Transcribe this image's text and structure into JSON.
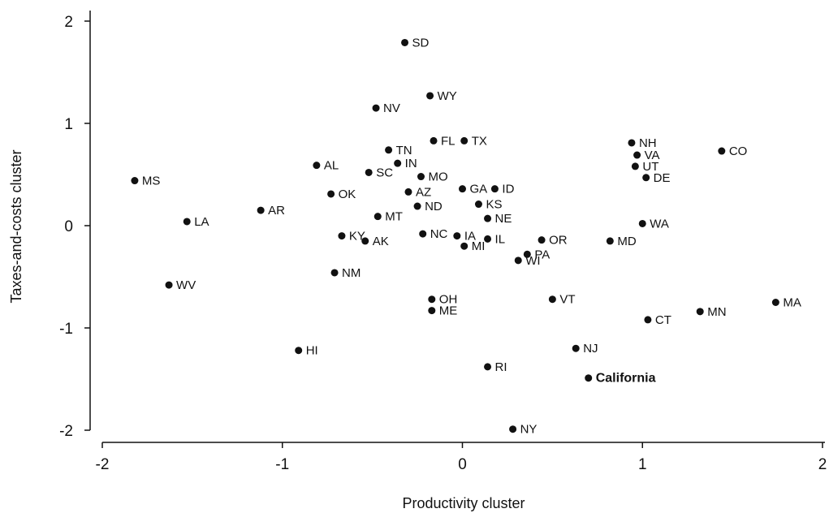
{
  "chart_data": {
    "type": "scatter",
    "xlabel": "Productivity cluster",
    "ylabel": "Taxes-and-costs cluster",
    "xlim": [
      -2,
      2
    ],
    "ylim": [
      -2,
      2
    ],
    "x_ticks": [
      -2,
      -1,
      0,
      1,
      2
    ],
    "y_ticks": [
      -2,
      -1,
      0,
      1,
      2
    ],
    "x_tick_labels": [
      "-2",
      "-1",
      "0",
      "1",
      "2"
    ],
    "y_tick_labels": [
      "-2",
      "-1",
      "0",
      "1",
      "2"
    ],
    "grid": false,
    "marker_color": "#111111",
    "points": [
      {
        "label": "SD",
        "x": -0.32,
        "y": 1.79
      },
      {
        "label": "WY",
        "x": -0.18,
        "y": 1.27
      },
      {
        "label": "NV",
        "x": -0.48,
        "y": 1.15
      },
      {
        "label": "FL",
        "x": -0.16,
        "y": 0.83
      },
      {
        "label": "TX",
        "x": 0.01,
        "y": 0.83
      },
      {
        "label": "NH",
        "x": 0.94,
        "y": 0.81
      },
      {
        "label": "TN",
        "x": -0.41,
        "y": 0.74
      },
      {
        "label": "CO",
        "x": 1.44,
        "y": 0.73
      },
      {
        "label": "VA",
        "x": 0.97,
        "y": 0.69
      },
      {
        "label": "IN",
        "x": -0.36,
        "y": 0.61
      },
      {
        "label": "AL",
        "x": -0.81,
        "y": 0.59
      },
      {
        "label": "UT",
        "x": 0.96,
        "y": 0.58
      },
      {
        "label": "SC",
        "x": -0.52,
        "y": 0.52
      },
      {
        "label": "MO",
        "x": -0.23,
        "y": 0.48
      },
      {
        "label": "DE",
        "x": 1.02,
        "y": 0.47
      },
      {
        "label": "MS",
        "x": -1.82,
        "y": 0.44
      },
      {
        "label": "GA",
        "x": 0.0,
        "y": 0.36
      },
      {
        "label": "ID",
        "x": 0.18,
        "y": 0.36
      },
      {
        "label": "AZ",
        "x": -0.3,
        "y": 0.33
      },
      {
        "label": "OK",
        "x": -0.73,
        "y": 0.31
      },
      {
        "label": "KS",
        "x": 0.09,
        "y": 0.21
      },
      {
        "label": "ND",
        "x": -0.25,
        "y": 0.19
      },
      {
        "label": "AR",
        "x": -1.12,
        "y": 0.15
      },
      {
        "label": "MT",
        "x": -0.47,
        "y": 0.09
      },
      {
        "label": "NE",
        "x": 0.14,
        "y": 0.07
      },
      {
        "label": "LA",
        "x": -1.53,
        "y": 0.04
      },
      {
        "label": "WA",
        "x": 1.0,
        "y": 0.02
      },
      {
        "label": "KY",
        "x": -0.67,
        "y": -0.1
      },
      {
        "label": "NC",
        "x": -0.22,
        "y": -0.08
      },
      {
        "label": "IA",
        "x": -0.03,
        "y": -0.1
      },
      {
        "label": "IL",
        "x": 0.14,
        "y": -0.13
      },
      {
        "label": "OR",
        "x": 0.44,
        "y": -0.14
      },
      {
        "label": "MD",
        "x": 0.82,
        "y": -0.15
      },
      {
        "label": "AK",
        "x": -0.54,
        "y": -0.15
      },
      {
        "label": "MI",
        "x": 0.01,
        "y": -0.2
      },
      {
        "label": "PA",
        "x": 0.36,
        "y": -0.28
      },
      {
        "label": "WI",
        "x": 0.31,
        "y": -0.34
      },
      {
        "label": "NM",
        "x": -0.71,
        "y": -0.46
      },
      {
        "label": "WV",
        "x": -1.63,
        "y": -0.58
      },
      {
        "label": "OH",
        "x": -0.17,
        "y": -0.72
      },
      {
        "label": "VT",
        "x": 0.5,
        "y": -0.72
      },
      {
        "label": "MA",
        "x": 1.74,
        "y": -0.75
      },
      {
        "label": "ME",
        "x": -0.17,
        "y": -0.83
      },
      {
        "label": "MN",
        "x": 1.32,
        "y": -0.84
      },
      {
        "label": "CT",
        "x": 1.03,
        "y": -0.92
      },
      {
        "label": "NJ",
        "x": 0.63,
        "y": -1.2
      },
      {
        "label": "HI",
        "x": -0.91,
        "y": -1.22
      },
      {
        "label": "RI",
        "x": 0.14,
        "y": -1.38
      },
      {
        "label": "California",
        "x": 0.7,
        "y": -1.49,
        "highlight": true
      },
      {
        "label": "NY",
        "x": 0.28,
        "y": -1.99
      }
    ]
  }
}
